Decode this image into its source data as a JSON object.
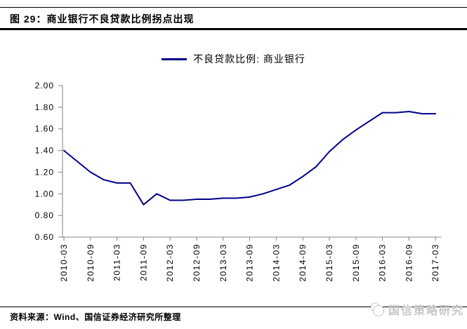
{
  "header": {
    "title": "图 29：商业银行不良贷款比例拐点出现"
  },
  "footer": {
    "source": "资料来源：Wind、国信证券经济研究所整理",
    "brand": "国信策略研究"
  },
  "colors": {
    "line": "#00008B",
    "axis": "#808080",
    "brand_gray": "#c6c6c6"
  },
  "chart_data": {
    "type": "line",
    "title": "图 29：商业银行不良贷款比例拐点出现",
    "legend": {
      "label": "不良贷款比例: 商业银行",
      "position": "top-center"
    },
    "xlabel": "",
    "ylabel": "",
    "grid": false,
    "ylim": [
      0.6,
      2.0
    ],
    "y_ticks": [
      "2.00",
      "1.80",
      "1.60",
      "1.40",
      "1.20",
      "1.00",
      "0.80",
      "0.60"
    ],
    "x": [
      "2010-03",
      "2010-06",
      "2010-09",
      "2010-12",
      "2011-03",
      "2011-06",
      "2011-09",
      "2011-12",
      "2012-03",
      "2012-06",
      "2012-09",
      "2012-12",
      "2013-03",
      "2013-06",
      "2013-09",
      "2013-12",
      "2014-03",
      "2014-06",
      "2014-09",
      "2014-12",
      "2015-03",
      "2015-06",
      "2015-09",
      "2015-12",
      "2016-03",
      "2016-06",
      "2016-09",
      "2016-12",
      "2017-03"
    ],
    "x_tick_labels": [
      "2010-03",
      "2010-09",
      "2011-03",
      "2011-09",
      "2012-03",
      "2012-09",
      "2013-03",
      "2013-09",
      "2014-03",
      "2014-09",
      "2015-03",
      "2015-09",
      "2016-03",
      "2016-09",
      "2017-03"
    ],
    "series": [
      {
        "name": "不良贷款比例: 商业银行",
        "color": "#00008B",
        "values": [
          1.4,
          1.3,
          1.2,
          1.13,
          1.1,
          1.1,
          0.9,
          1.0,
          0.94,
          0.94,
          0.95,
          0.95,
          0.96,
          0.96,
          0.97,
          1.0,
          1.04,
          1.08,
          1.16,
          1.25,
          1.39,
          1.5,
          1.59,
          1.67,
          1.75,
          1.75,
          1.76,
          1.74,
          1.74
        ]
      }
    ]
  }
}
